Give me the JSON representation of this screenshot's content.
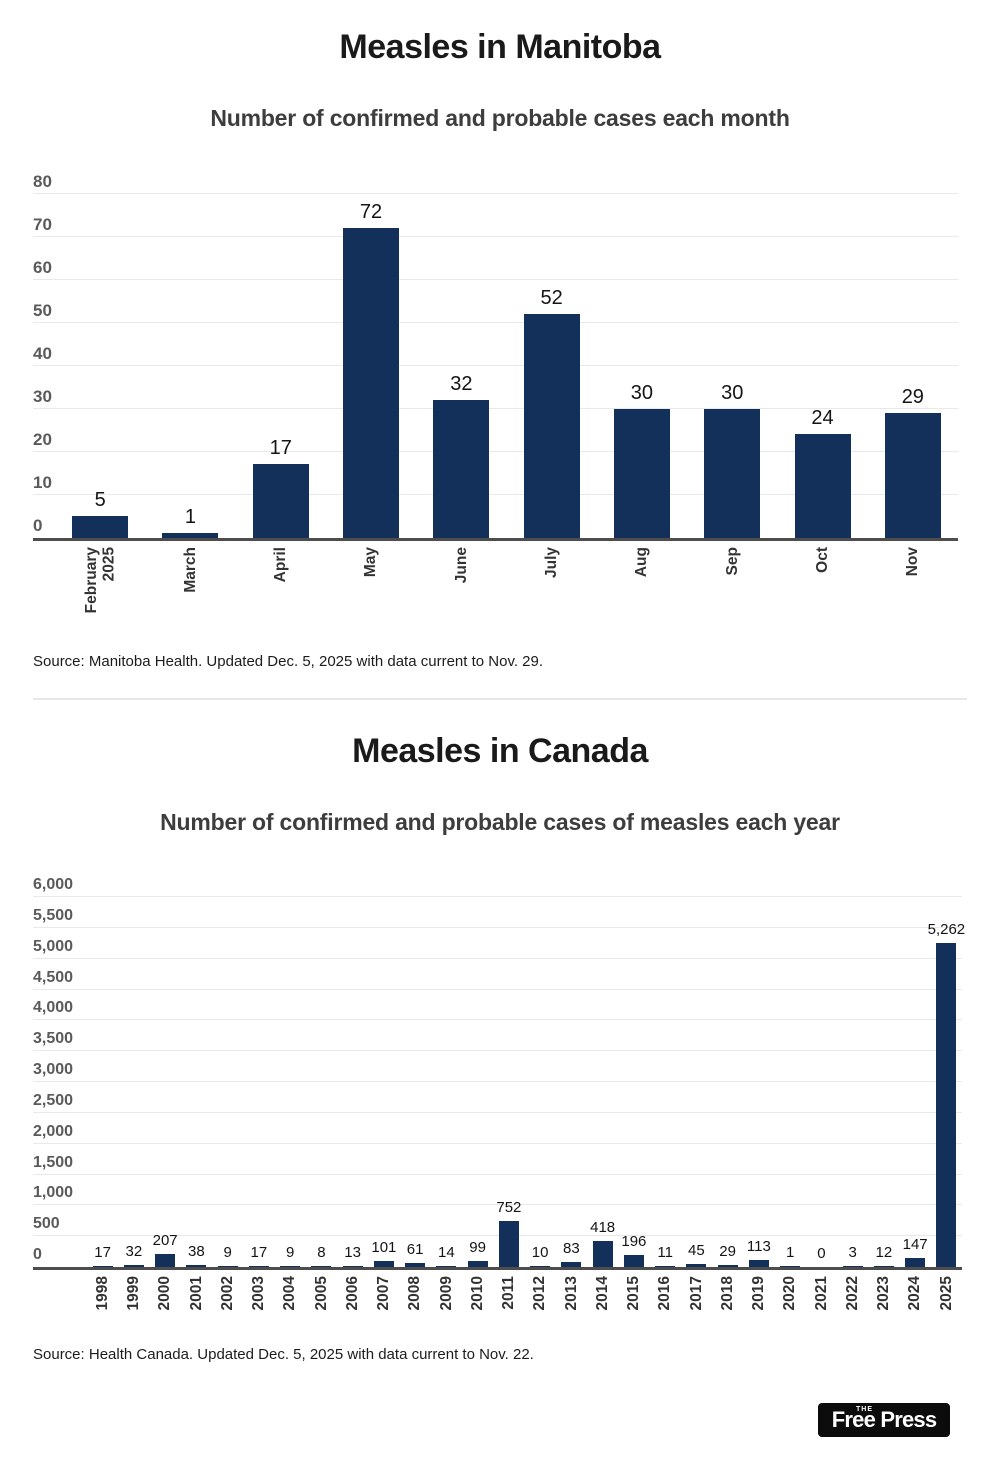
{
  "chart_data": [
    {
      "type": "bar",
      "title": "Measles in Manitoba",
      "subtitle": "Number of confirmed and probable cases each month",
      "categories": [
        "February\n2025",
        "March",
        "April",
        "May",
        "June",
        "July",
        "Aug",
        "Sep",
        "Oct",
        "Nov"
      ],
      "values": [
        5,
        1,
        17,
        72,
        32,
        52,
        30,
        30,
        24,
        29
      ],
      "value_labels": [
        "5",
        "1",
        "17",
        "72",
        "32",
        "52",
        "30",
        "30",
        "24",
        "29"
      ],
      "xlabel": "",
      "ylabel": "",
      "ylim": [
        0,
        80
      ],
      "ytick": 10,
      "grid": true,
      "legend": "none",
      "bar_color": "#12305a",
      "source": "Source: Manitoba Health. Updated Dec. 5, 2025 with data current to Nov. 29."
    },
    {
      "type": "bar",
      "title": "Measles in Canada",
      "subtitle": "Number of confirmed and probable cases of measles each year",
      "categories": [
        "1998",
        "1999",
        "2000",
        "2001",
        "2002",
        "2003",
        "2004",
        "2005",
        "2006",
        "2007",
        "2008",
        "2009",
        "2010",
        "2011",
        "2012",
        "2013",
        "2014",
        "2015",
        "2016",
        "2017",
        "2018",
        "2019",
        "2020",
        "2021",
        "2022",
        "2023",
        "2024",
        "2025"
      ],
      "values": [
        17,
        32,
        207,
        38,
        9,
        17,
        9,
        8,
        13,
        101,
        61,
        14,
        99,
        752,
        10,
        83,
        418,
        196,
        11,
        45,
        29,
        113,
        1,
        0,
        3,
        12,
        147,
        5262
      ],
      "value_labels": [
        "17",
        "32",
        "207",
        "38",
        "9",
        "17",
        "9",
        "8",
        "13",
        "101",
        "61",
        "14",
        "99",
        "752",
        "10",
        "83",
        "418",
        "196",
        "11",
        "45",
        "29",
        "113",
        "1",
        "0",
        "3",
        "12",
        "147",
        "5,262"
      ],
      "xlabel": "",
      "ylabel": "",
      "ylim": [
        0,
        6000
      ],
      "ytick": 500,
      "grid": true,
      "legend": "none",
      "bar_color": "#12305a",
      "source": "Source: Health Canada. Updated Dec. 5, 2025 with data current to Nov. 22."
    }
  ],
  "colors": {
    "bar": "#12305a",
    "axis_line": "#4d4d4d",
    "gridline": "#e9e9e9",
    "title": "#1a1a1a",
    "subtitle": "#3d3d3d"
  },
  "logo": {
    "the": "THE",
    "name": "Free Press",
    "bg": "#0c0c0c",
    "fg": "#ffffff"
  }
}
